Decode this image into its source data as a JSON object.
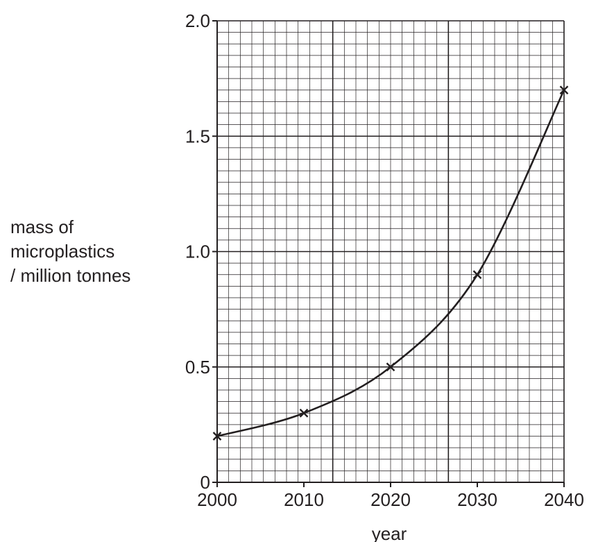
{
  "chart_data": {
    "type": "line",
    "title": "",
    "xlabel": "year",
    "ylabel_lines": [
      "mass of",
      "microplastics",
      "/ million tonnes"
    ],
    "x": [
      2000,
      2010,
      2020,
      2030,
      2040
    ],
    "y": [
      0.2,
      0.3,
      0.5,
      0.9,
      1.7
    ],
    "xlim": [
      2000,
      2040
    ],
    "ylim": [
      0,
      2.0
    ],
    "x_ticks": [
      "2000",
      "2010",
      "2020",
      "2030",
      "2040"
    ],
    "y_ticks": [
      "0",
      "0.5",
      "1.0",
      "1.5",
      "2.0"
    ],
    "marker": "x",
    "grid": true,
    "colors": {
      "ink": "#231f20"
    }
  }
}
